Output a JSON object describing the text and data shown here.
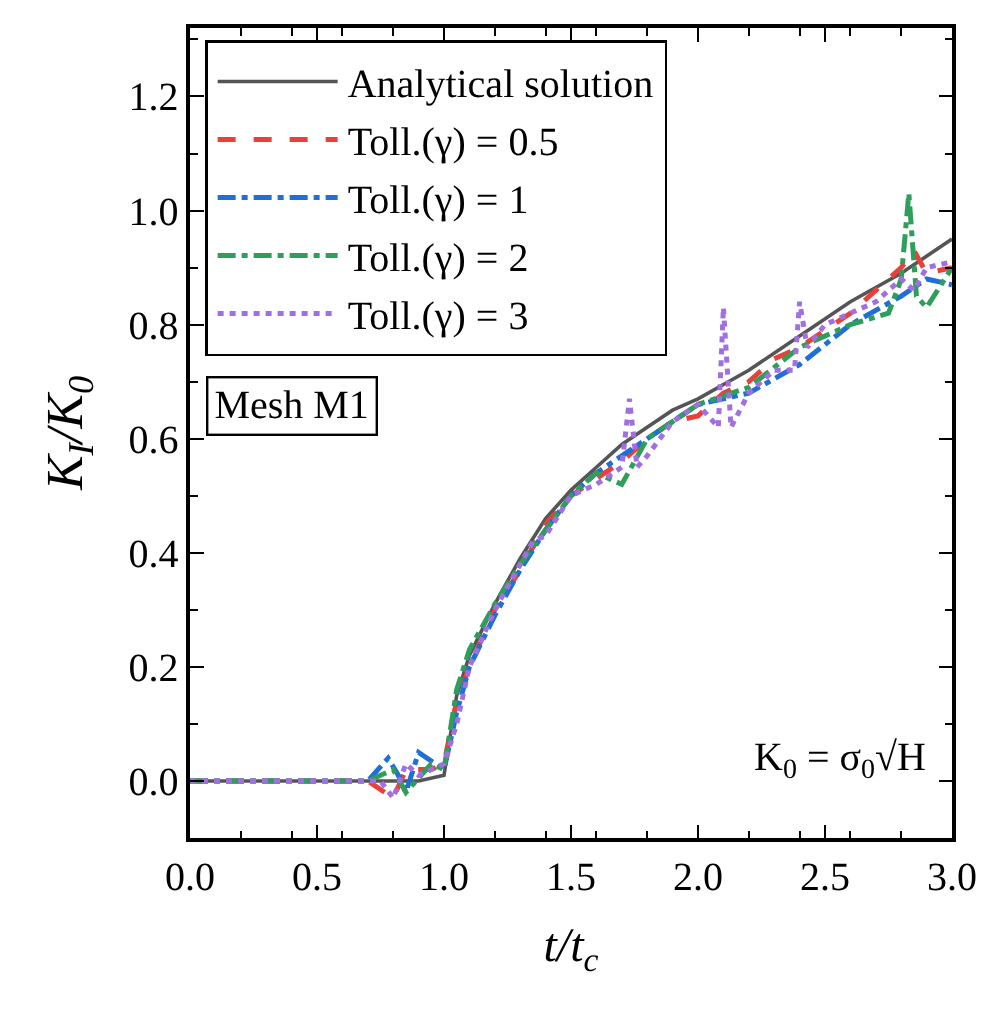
{
  "chart_data": {
    "type": "line",
    "xlabel": "t/t$_{c}$",
    "ylabel": "K$_{I}$/K$_{0}$",
    "xlim": [
      0,
      3
    ],
    "xticks": [
      {
        "value": 0,
        "label": "0.0"
      },
      {
        "value": 0.5,
        "label": "0.5"
      },
      {
        "value": 1,
        "label": "1.0"
      },
      {
        "value": 1.5,
        "label": "1.5"
      },
      {
        "value": 2,
        "label": "2.0"
      },
      {
        "value": 2.5,
        "label": "2.5"
      },
      {
        "value": 3,
        "label": "3.0"
      }
    ],
    "ylim": [
      -0.1,
      1.32
    ],
    "yticks": [
      {
        "value": 0,
        "label": "0.0"
      },
      {
        "value": 0.2,
        "label": "0.2"
      },
      {
        "value": 0.4,
        "label": "0.4"
      },
      {
        "value": 0.6,
        "label": "0.6"
      },
      {
        "value": 0.8,
        "label": "0.8"
      },
      {
        "value": 1.0,
        "label": "1.0"
      },
      {
        "value": 1.2,
        "label": "1.2"
      }
    ],
    "legend": "top left",
    "marker": "none",
    "annotations": [
      "Mesh M1",
      "K$_{0}$ = σ$_{0}$√H"
    ],
    "series": [
      {
        "name": "Analytical solution",
        "color": "#555555",
        "line_style": "solid",
        "x": [
          0,
          0.5,
          0.9,
          1.0,
          1.05,
          1.1,
          1.2,
          1.3,
          1.4,
          1.5,
          1.6,
          1.7,
          1.8,
          1.9,
          2.0,
          2.2,
          2.4,
          2.6,
          2.8,
          3.0
        ],
        "values": [
          0,
          0,
          0,
          0.01,
          0.15,
          0.22,
          0.31,
          0.39,
          0.46,
          0.51,
          0.55,
          0.59,
          0.62,
          0.65,
          0.67,
          0.72,
          0.78,
          0.84,
          0.89,
          0.95
        ]
      },
      {
        "name": "Toll.(γ) = 0.5",
        "color": "#e8403a",
        "line_style": "dashed",
        "x": [
          0,
          0.7,
          0.8,
          0.85,
          0.95,
          1.0,
          1.05,
          1.1,
          1.2,
          1.3,
          1.4,
          1.5,
          1.6,
          1.7,
          1.8,
          1.9,
          2.0,
          2.1,
          2.2,
          2.3,
          2.4,
          2.5,
          2.6,
          2.7,
          2.8,
          2.85,
          2.9,
          3.0
        ],
        "values": [
          0,
          0,
          -0.03,
          0.02,
          0.02,
          0.03,
          0.14,
          0.2,
          0.3,
          0.37,
          0.45,
          0.5,
          0.53,
          0.56,
          0.6,
          0.63,
          0.64,
          0.68,
          0.7,
          0.74,
          0.76,
          0.79,
          0.82,
          0.86,
          0.9,
          0.93,
          0.89,
          0.9
        ]
      },
      {
        "name": "Toll.(γ) = 1",
        "color": "#1f6fd6",
        "line_style": "dashdot",
        "x": [
          0,
          0.7,
          0.78,
          0.82,
          0.85,
          0.9,
          1.0,
          1.05,
          1.1,
          1.2,
          1.3,
          1.4,
          1.5,
          1.6,
          1.7,
          1.8,
          1.9,
          2.0,
          2.2,
          2.4,
          2.6,
          2.8,
          2.9,
          3.0
        ],
        "values": [
          0,
          0,
          0.04,
          0.01,
          -0.02,
          0.05,
          0.02,
          0.12,
          0.2,
          0.29,
          0.37,
          0.44,
          0.5,
          0.54,
          0.57,
          0.6,
          0.63,
          0.66,
          0.68,
          0.73,
          0.8,
          0.85,
          0.88,
          0.87
        ]
      },
      {
        "name": "Toll.(γ) = 2",
        "color": "#2e9e5a",
        "line_style": "dashdot",
        "x": [
          0,
          0.7,
          0.8,
          0.85,
          0.95,
          1.0,
          1.05,
          1.1,
          1.2,
          1.3,
          1.4,
          1.5,
          1.6,
          1.7,
          1.8,
          1.9,
          2.0,
          2.2,
          2.4,
          2.6,
          2.75,
          2.8,
          2.83,
          2.86,
          2.9,
          3.0
        ],
        "values": [
          0,
          0,
          0.02,
          -0.02,
          0.03,
          0.02,
          0.16,
          0.23,
          0.31,
          0.38,
          0.44,
          0.5,
          0.54,
          0.52,
          0.6,
          0.63,
          0.66,
          0.69,
          0.76,
          0.8,
          0.82,
          0.88,
          1.03,
          0.85,
          0.83,
          0.9
        ]
      },
      {
        "name": "Toll.(γ) = 3",
        "color": "#a070e0",
        "line_style": "dotted",
        "x": [
          0,
          0.75,
          0.8,
          0.85,
          0.9,
          1.0,
          1.05,
          1.1,
          1.2,
          1.3,
          1.35,
          1.4,
          1.5,
          1.6,
          1.7,
          1.73,
          1.76,
          1.8,
          1.9,
          2.0,
          2.08,
          2.1,
          2.13,
          2.2,
          2.3,
          2.38,
          2.4,
          2.43,
          2.5,
          2.6,
          2.7,
          2.8,
          2.85,
          2.9,
          3.0
        ],
        "values": [
          0,
          0,
          -0.03,
          0.03,
          0.01,
          0.03,
          0.1,
          0.2,
          0.3,
          0.38,
          0.42,
          0.43,
          0.5,
          0.52,
          0.55,
          0.67,
          0.55,
          0.57,
          0.63,
          0.66,
          0.62,
          0.83,
          0.62,
          0.68,
          0.72,
          0.72,
          0.84,
          0.76,
          0.8,
          0.82,
          0.84,
          0.88,
          0.86,
          0.9,
          0.91
        ]
      }
    ]
  }
}
